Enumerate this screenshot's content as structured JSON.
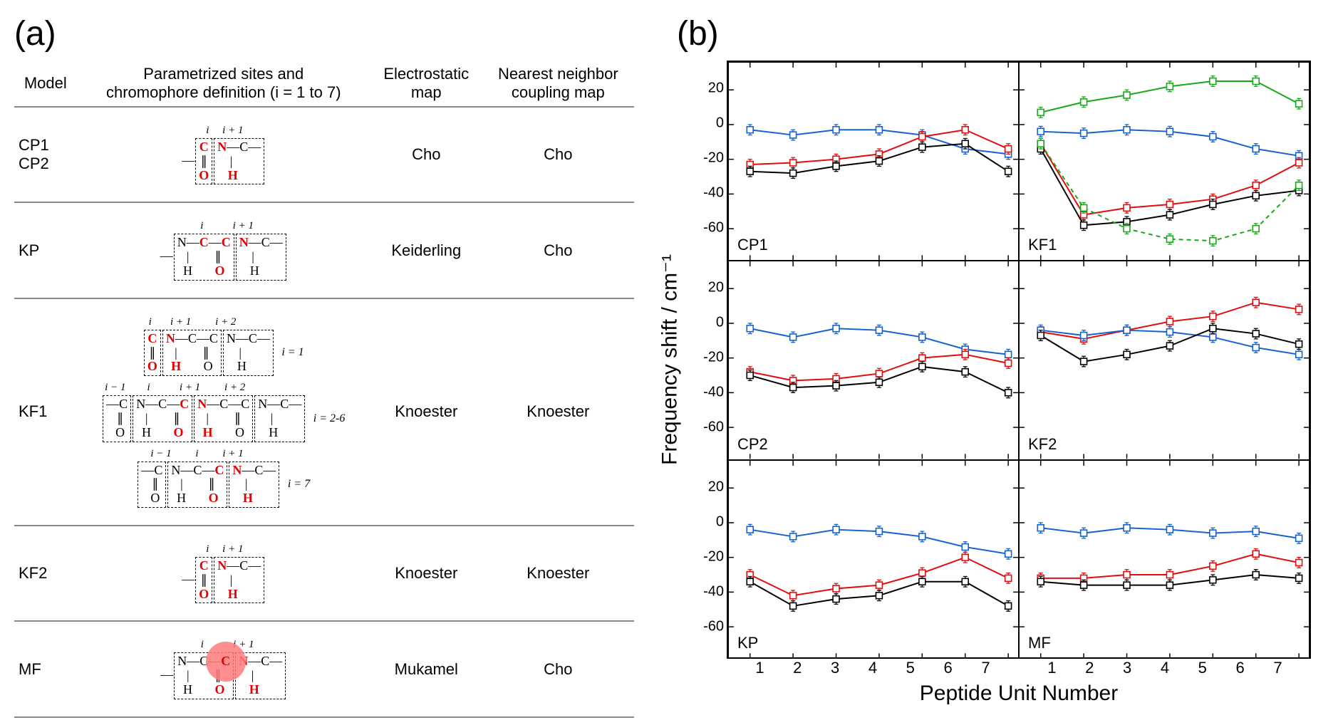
{
  "panel_labels": {
    "a": "(a)",
    "b": "(b)"
  },
  "table": {
    "headers": {
      "model": "Model",
      "sites": "Parametrized sites and\nchromophore definition (i = 1 to 7)",
      "emap": "Electrostatic\nmap",
      "nnmap": "Nearest neighbor\ncoupling map"
    },
    "rows": [
      {
        "model_lines": [
          "CP1",
          "CP2"
        ],
        "emap": "Cho",
        "nnmap": "Cho"
      },
      {
        "model_lines": [
          "KP"
        ],
        "emap": "Keiderling",
        "nnmap": "Cho"
      },
      {
        "model_lines": [
          "KF1"
        ],
        "emap": "Knoester",
        "nnmap": "Knoester"
      },
      {
        "model_lines": [
          "KF2"
        ],
        "emap": "Knoester",
        "nnmap": "Knoester"
      },
      {
        "model_lines": [
          "MF"
        ],
        "emap": "Mukamel",
        "nnmap": "Cho"
      }
    ]
  },
  "charts": {
    "y_label": "Frequency shift / cm⁻¹",
    "x_label": "Peptide Unit Number",
    "x_categories": [
      1,
      2,
      3,
      4,
      5,
      6,
      7
    ],
    "ylim": [
      -70,
      30
    ],
    "ytick_values": [
      20,
      0,
      -20,
      -40,
      -60
    ],
    "colors": {
      "blue": "#1560d0",
      "red": "#e30b0b",
      "black": "#000000",
      "green": "#18a818"
    },
    "line_width": 2,
    "marker_size": 4.5,
    "error_cap": 3,
    "error_val": 3,
    "font_size_label": 22,
    "panels": [
      {
        "label": "CP1",
        "series": [
          {
            "color": "blue",
            "y": [
              -3,
              -6,
              -3,
              -3,
              -6,
              -14,
              -17
            ]
          },
          {
            "color": "red",
            "y": [
              -23,
              -22,
              -20,
              -17,
              -7,
              -3,
              -14
            ]
          },
          {
            "color": "black",
            "y": [
              -27,
              -28,
              -24,
              -21,
              -13,
              -11,
              -27
            ]
          }
        ]
      },
      {
        "label": "KF1",
        "series": [
          {
            "color": "green",
            "dash": false,
            "y": [
              7,
              13,
              17,
              22,
              25,
              25,
              12
            ]
          },
          {
            "color": "blue",
            "y": [
              -4,
              -5,
              -3,
              -4,
              -7,
              -14,
              -18
            ]
          },
          {
            "color": "red",
            "y": [
              -11,
              -52,
              -48,
              -46,
              -43,
              -35,
              -22
            ]
          },
          {
            "color": "black",
            "y": [
              -14,
              -58,
              -56,
              -52,
              -46,
              -41,
              -38
            ]
          },
          {
            "color": "green",
            "dash": true,
            "y": [
              -11,
              -48,
              -60,
              -66,
              -67,
              -60,
              -35
            ]
          }
        ]
      },
      {
        "label": "CP2",
        "series": [
          {
            "color": "blue",
            "y": [
              -3,
              -8,
              -3,
              -4,
              -8,
              -15,
              -18
            ]
          },
          {
            "color": "red",
            "y": [
              -28,
              -33,
              -32,
              -29,
              -20,
              -18,
              -23
            ]
          },
          {
            "color": "black",
            "y": [
              -30,
              -37,
              -36,
              -34,
              -25,
              -28,
              -40
            ]
          }
        ]
      },
      {
        "label": "KF2",
        "series": [
          {
            "color": "red",
            "y": [
              -5,
              -9,
              -4,
              1,
              4,
              12,
              8
            ]
          },
          {
            "color": "blue",
            "y": [
              -4,
              -7,
              -4,
              -5,
              -8,
              -14,
              -18
            ]
          },
          {
            "color": "black",
            "y": [
              -7,
              -22,
              -18,
              -13,
              -3,
              -6,
              -12
            ]
          }
        ]
      },
      {
        "label": "KP",
        "series": [
          {
            "color": "blue",
            "y": [
              -4,
              -8,
              -4,
              -5,
              -8,
              -14,
              -18
            ]
          },
          {
            "color": "red",
            "y": [
              -30,
              -42,
              -38,
              -36,
              -29,
              -20,
              -32
            ]
          },
          {
            "color": "black",
            "y": [
              -34,
              -48,
              -44,
              -42,
              -34,
              -34,
              -48
            ]
          }
        ]
      },
      {
        "label": "MF",
        "series": [
          {
            "color": "blue",
            "y": [
              -3,
              -6,
              -3,
              -4,
              -6,
              -5,
              -9
            ]
          },
          {
            "color": "red",
            "y": [
              -32,
              -32,
              -30,
              -30,
              -25,
              -18,
              -23
            ]
          },
          {
            "color": "black",
            "y": [
              -34,
              -36,
              -36,
              -36,
              -33,
              -30,
              -32
            ]
          }
        ]
      }
    ]
  }
}
